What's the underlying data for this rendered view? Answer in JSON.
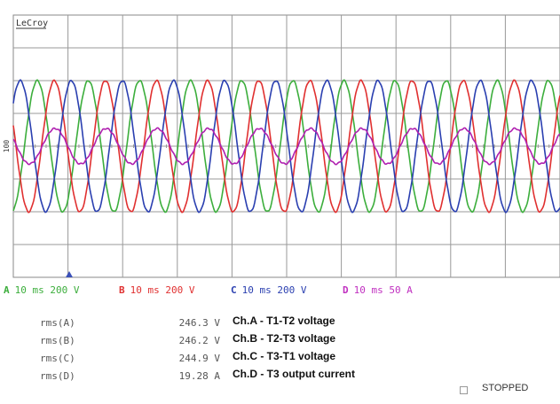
{
  "brand": "LeCroy",
  "marker": "100",
  "channels": [
    {
      "id": "A",
      "timebase": "10 ms",
      "scale": "200 V"
    },
    {
      "id": "B",
      "timebase": "10 ms",
      "scale": "200 V"
    },
    {
      "id": "C",
      "timebase": "10 ms",
      "scale": "200 V"
    },
    {
      "id": "D",
      "timebase": "10 ms",
      "scale": "50 A"
    }
  ],
  "measurements": [
    {
      "label": "rms(A)",
      "value": "246.3 V",
      "description": "Ch.A - T1-T2 voltage"
    },
    {
      "label": "rms(B)",
      "value": "246.2 V",
      "description": "Ch.B - T2-T3 voltage"
    },
    {
      "label": "rms(C)",
      "value": "244.9 V",
      "description": "Ch.C - T3-T1 voltage"
    },
    {
      "label": "rms(D)",
      "value": "19.28 A",
      "description": "Ch.D - T3 output current"
    }
  ],
  "status": "STOPPED"
}
